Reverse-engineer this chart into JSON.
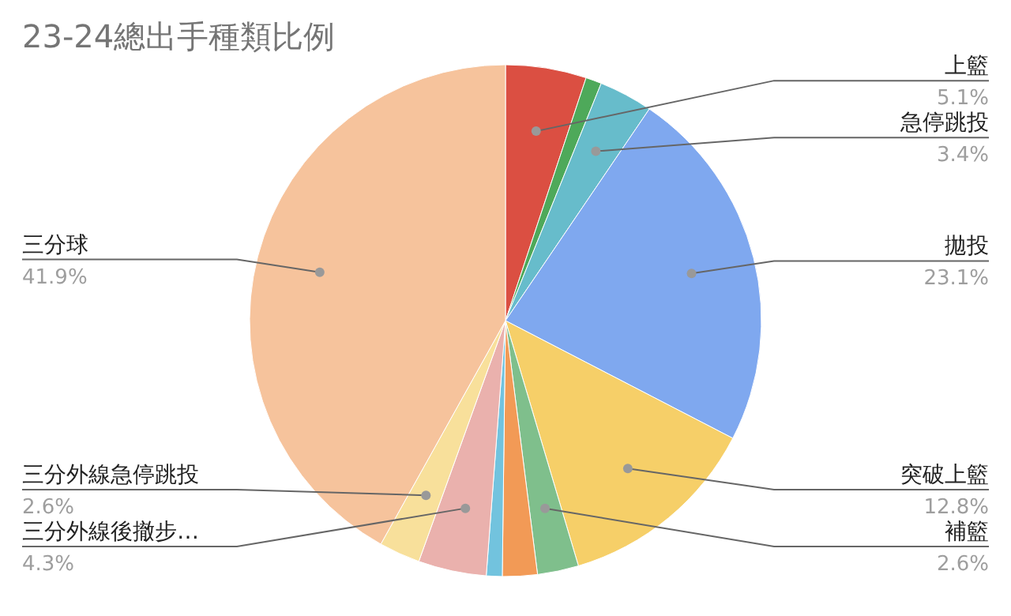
{
  "chart_data": {
    "type": "pie",
    "title": "23-24總出手種類比例",
    "categories": [
      "上籃",
      null,
      "急停跳投",
      "拋投",
      "突破上籃",
      "補籃",
      null,
      null,
      "三分外線後撤步…",
      "三分外線急停跳投",
      "三分球"
    ],
    "values": [
      5.1,
      1.0,
      3.4,
      23.1,
      12.8,
      2.6,
      2.2,
      1.0,
      4.3,
      2.6,
      41.9
    ],
    "value_labels": [
      "5.1%",
      null,
      "3.4%",
      "23.1%",
      "12.8%",
      "2.6%",
      null,
      null,
      "4.3%",
      "2.6%",
      "41.9%"
    ],
    "colors": [
      "#db4f42",
      "#4ea95a",
      "#67bccb",
      "#7fa8ef",
      "#f6cf68",
      "#7fbf8c",
      "#f29a56",
      "#72c3de",
      "#eab1ad",
      "#f8e09b",
      "#f6c39c"
    ]
  }
}
